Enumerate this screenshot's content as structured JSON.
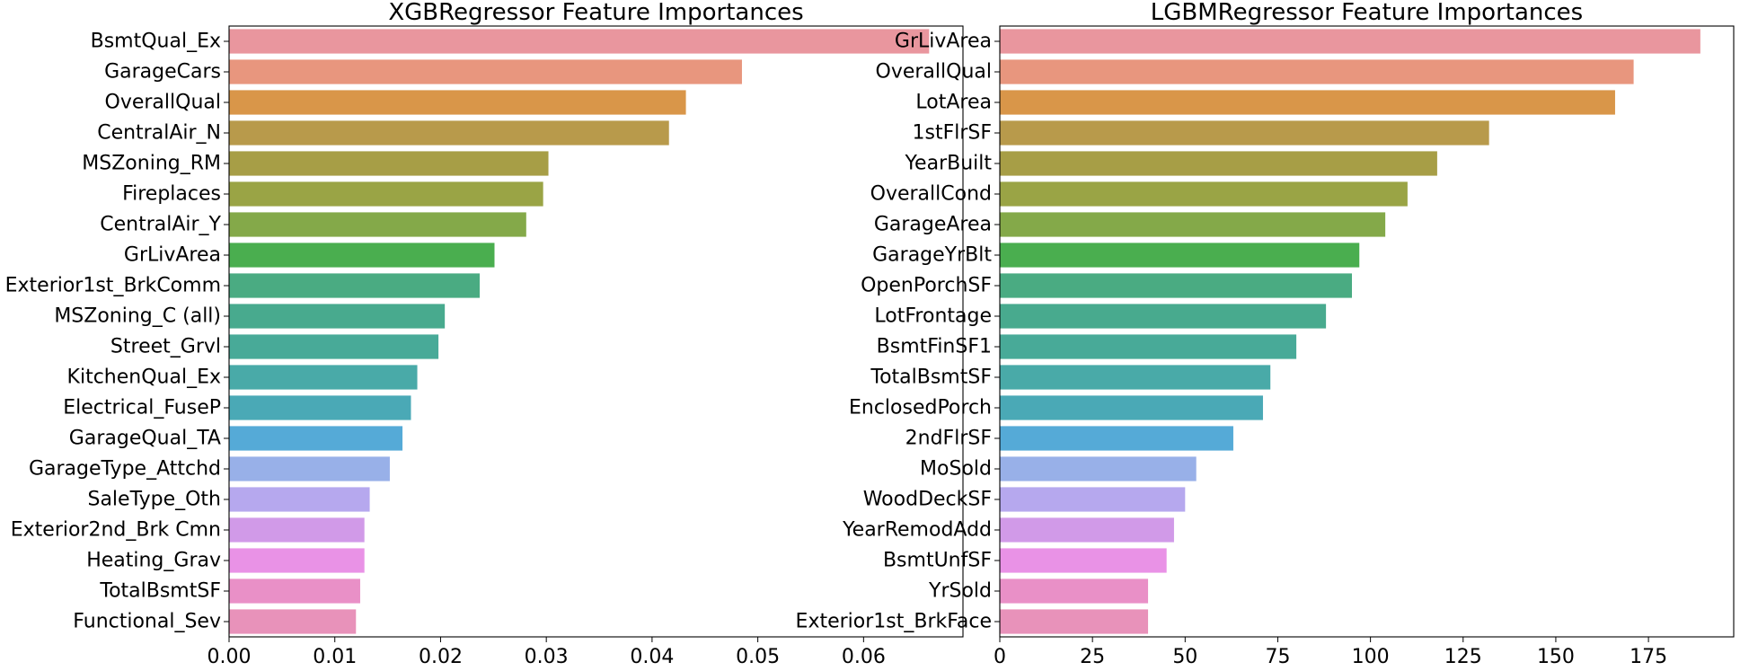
{
  "chart_data": [
    {
      "type": "bar",
      "orientation": "horizontal",
      "title": "XGBRegressor Feature Importances",
      "xlabel": "",
      "ylabel": "",
      "xlim": [
        0,
        0.0694
      ],
      "xticks": [
        0.0,
        0.01,
        0.02,
        0.03,
        0.04,
        0.05,
        0.06
      ],
      "xtick_labels": [
        "0.00",
        "0.01",
        "0.02",
        "0.03",
        "0.04",
        "0.05",
        "0.06"
      ],
      "grid": false,
      "categories": [
        "BsmtQual_Ex",
        "GarageCars",
        "OverallQual",
        "CentralAir_N",
        "MSZoning_RM",
        "Fireplaces",
        "CentralAir_Y",
        "GrLivArea",
        "Exterior1st_BrkComm",
        "MSZoning_C (all)",
        "Street_Grvl",
        "KitchenQual_Ex",
        "Electrical_FuseP",
        "GarageQual_TA",
        "GarageType_Attchd",
        "SaleType_Oth",
        "Exterior2nd_Brk Cmn",
        "Heating_Grav",
        "TotalBsmtSF",
        "Functional_Sev"
      ],
      "values": [
        0.0662,
        0.0485,
        0.0432,
        0.0416,
        0.0302,
        0.0297,
        0.0281,
        0.0251,
        0.0237,
        0.0204,
        0.0198,
        0.0178,
        0.0172,
        0.0164,
        0.0152,
        0.0133,
        0.0128,
        0.0128,
        0.0124,
        0.012
      ]
    },
    {
      "type": "bar",
      "orientation": "horizontal",
      "title": "LGBMRegressor Feature Importances",
      "xlabel": "",
      "ylabel": "",
      "xlim": [
        0,
        198
      ],
      "xticks": [
        0,
        25,
        50,
        75,
        100,
        125,
        150,
        175
      ],
      "xtick_labels": [
        "0",
        "25",
        "50",
        "75",
        "100",
        "125",
        "150",
        "175"
      ],
      "grid": false,
      "categories": [
        "GrLivArea",
        "OverallQual",
        "LotArea",
        "1stFlrSF",
        "YearBuilt",
        "OverallCond",
        "GarageArea",
        "GarageYrBlt",
        "OpenPorchSF",
        "LotFrontage",
        "BsmtFinSF1",
        "TotalBsmtSF",
        "EnclosedPorch",
        "2ndFlrSF",
        "MoSold",
        "WoodDeckSF",
        "YearRemodAdd",
        "BsmtUnfSF",
        "YrSold",
        "Exterior1st_BrkFace"
      ],
      "values": [
        189,
        171,
        166,
        132,
        118,
        110,
        104,
        97,
        95,
        88,
        80,
        73,
        71,
        63,
        53,
        50,
        47,
        45,
        40,
        40
      ]
    }
  ],
  "palette": [
    "#e9969e",
    "#e8967e",
    "#d99649",
    "#b89a4b",
    "#a79e46",
    "#9aa445",
    "#84a949",
    "#4aae4f",
    "#4aab82",
    "#48aa8e",
    "#48aa98",
    "#49aaa8",
    "#4aa9b6",
    "#55aad7",
    "#98b0e8",
    "#b6a8ee",
    "#d19ae8",
    "#e992e6",
    "#e990c7",
    "#e892ba"
  ]
}
